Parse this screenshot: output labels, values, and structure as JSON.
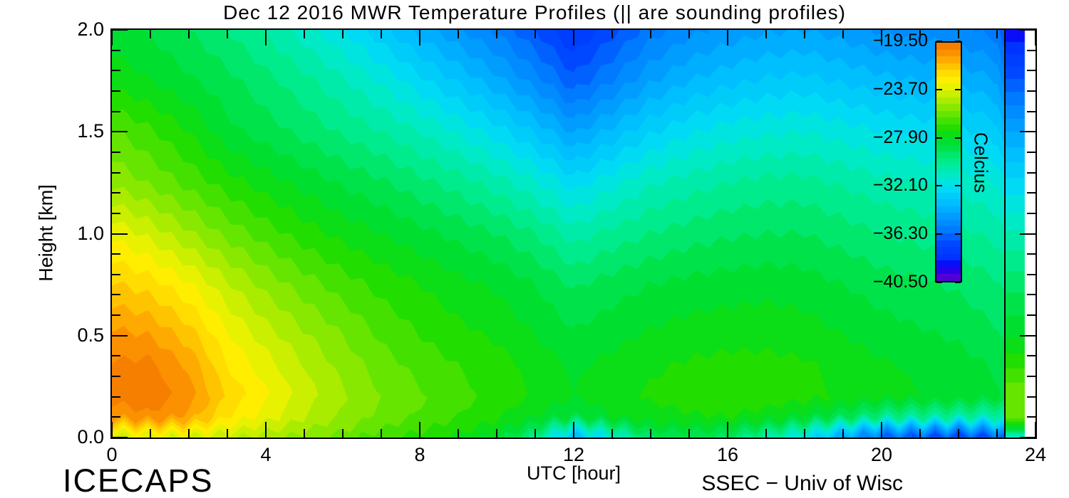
{
  "title": "Dec 12 2016 MWR Temperature Profiles (|| are sounding profiles)",
  "footer": {
    "left": "ICECAPS",
    "right": "SSEC − Univ of Wisc"
  },
  "axes": {
    "x": {
      "label": "UTC [hour]",
      "range": [
        0,
        24
      ],
      "major_ticks": [
        0,
        4,
        8,
        12,
        16,
        20,
        24
      ],
      "tick_labels": [
        "0",
        "4",
        "8",
        "12",
        "16",
        "20",
        "24"
      ],
      "minor_step": 1
    },
    "y": {
      "label": "Height [km]",
      "range": [
        0,
        2
      ],
      "major_ticks": [
        0,
        0.5,
        1.0,
        1.5,
        2.0
      ],
      "tick_labels": [
        "0.0",
        "0.5",
        "1.0",
        "1.5",
        "2.0"
      ],
      "minor_step": 0.1
    }
  },
  "colorbar": {
    "title": "Celcius",
    "tick_labels": [
      "−19.50",
      "−23.70",
      "−27.90",
      "−32.10",
      "−36.30",
      "−40.50"
    ],
    "tick_values": [
      -19.5,
      -23.7,
      -27.9,
      -32.1,
      -36.3,
      -40.5
    ],
    "max": -19.5,
    "min": -40.5
  },
  "chart_data": {
    "type": "heatmap",
    "title": "Dec 12 2016 MWR Temperature Profiles (|| are sounding profiles)",
    "xlabel": "UTC [hour]",
    "ylabel": "Height [km]",
    "value_label": "Celcius",
    "xlim": [
      0,
      24
    ],
    "ylim": [
      0,
      2
    ],
    "level_min": -40.5,
    "level_max": -19.5,
    "level_step": 0.6,
    "x_hours": [
      0,
      1,
      2,
      3,
      4,
      5,
      6,
      7,
      8,
      9,
      10,
      11,
      12,
      13,
      14,
      15,
      16,
      17,
      18,
      19,
      20,
      21,
      22,
      23,
      23.2
    ],
    "heights_km": [
      0,
      0.04,
      0.1,
      0.2,
      0.35,
      0.5,
      0.75,
      1.0,
      1.25,
      1.5,
      1.75,
      2.0
    ],
    "temperature_c": [
      [
        -24.0,
        -23.6,
        -23.8,
        -24.2,
        -24.6,
        -25.2,
        -25.8,
        -26.5,
        -27.0,
        -27.5,
        -28.2,
        -30.0,
        -33.8,
        -31.5,
        -29.2,
        -29.0,
        -29.2,
        -30.5,
        -32.0,
        -34.5,
        -36.5,
        -37.0,
        -37.5,
        -37.0,
        -36.5
      ],
      [
        -22.8,
        -22.3,
        -22.6,
        -23.4,
        -24.1,
        -24.8,
        -25.4,
        -26.1,
        -26.6,
        -27.1,
        -27.7,
        -29.0,
        -31.8,
        -30.0,
        -28.4,
        -28.3,
        -28.5,
        -29.3,
        -30.5,
        -32.5,
        -34.3,
        -34.8,
        -35.2,
        -34.8,
        -34.0
      ],
      [
        -20.6,
        -20.2,
        -20.9,
        -22.5,
        -23.4,
        -24.3,
        -25.0,
        -25.7,
        -26.2,
        -26.7,
        -27.2,
        -27.9,
        -28.6,
        -27.9,
        -27.6,
        -27.4,
        -27.3,
        -27.6,
        -28.2,
        -29.0,
        -30.0,
        -30.3,
        -30.5,
        -30.8,
        -30.5
      ],
      [
        -19.9,
        -19.7,
        -20.4,
        -22.0,
        -23.0,
        -24.0,
        -24.8,
        -25.5,
        -26.0,
        -26.5,
        -26.9,
        -27.4,
        -27.9,
        -27.5,
        -27.2,
        -27.0,
        -26.9,
        -26.9,
        -27.1,
        -27.4,
        -27.7,
        -27.9,
        -28.0,
        -28.4,
        -28.6
      ],
      [
        -20.0,
        -19.9,
        -20.8,
        -22.5,
        -23.4,
        -24.3,
        -25.1,
        -25.8,
        -26.3,
        -26.7,
        -27.0,
        -27.5,
        -28.0,
        -27.7,
        -27.4,
        -27.2,
        -27.1,
        -27.1,
        -27.2,
        -27.5,
        -27.8,
        -28.0,
        -28.2,
        -28.6,
        -28.8
      ],
      [
        -20.5,
        -20.7,
        -21.6,
        -23.0,
        -24.0,
        -24.8,
        -25.5,
        -26.2,
        -26.7,
        -27.1,
        -27.4,
        -27.9,
        -28.4,
        -28.1,
        -27.8,
        -27.6,
        -27.5,
        -27.5,
        -27.6,
        -27.9,
        -28.2,
        -28.4,
        -28.6,
        -29.0,
        -29.2
      ],
      [
        -21.8,
        -22.2,
        -23.0,
        -24.2,
        -25.1,
        -25.8,
        -26.4,
        -26.9,
        -27.3,
        -27.7,
        -28.0,
        -28.5,
        -29.2,
        -28.8,
        -28.5,
        -28.3,
        -28.2,
        -28.1,
        -28.2,
        -28.5,
        -28.8,
        -29.0,
        -29.2,
        -29.6,
        -29.8
      ],
      [
        -23.2,
        -23.9,
        -24.8,
        -25.7,
        -26.4,
        -27.0,
        -27.5,
        -27.9,
        -28.3,
        -28.7,
        -29.1,
        -29.7,
        -30.6,
        -30.1,
        -29.7,
        -29.4,
        -29.2,
        -29.1,
        -29.1,
        -29.4,
        -29.7,
        -29.9,
        -30.1,
        -30.5,
        -30.8
      ],
      [
        -25.0,
        -25.6,
        -26.3,
        -27.0,
        -27.6,
        -28.1,
        -28.6,
        -29.0,
        -29.5,
        -30.0,
        -30.6,
        -31.4,
        -32.4,
        -31.7,
        -31.0,
        -30.6,
        -30.3,
        -30.1,
        -30.1,
        -30.4,
        -30.7,
        -30.9,
        -31.1,
        -31.5,
        -32.0
      ],
      [
        -26.0,
        -26.6,
        -27.3,
        -28.3,
        -28.8,
        -29.3,
        -29.8,
        -30.3,
        -30.9,
        -31.6,
        -32.4,
        -33.4,
        -34.6,
        -33.7,
        -32.8,
        -32.2,
        -31.8,
        -31.6,
        -31.5,
        -31.8,
        -32.1,
        -32.3,
        -32.5,
        -33.0,
        -33.8
      ],
      [
        -27.5,
        -27.9,
        -28.4,
        -28.9,
        -29.5,
        -30.1,
        -30.8,
        -31.6,
        -32.5,
        -33.4,
        -34.3,
        -35.4,
        -36.7,
        -35.7,
        -34.6,
        -33.9,
        -33.5,
        -33.2,
        -33.1,
        -33.4,
        -33.7,
        -33.9,
        -34.0,
        -34.5,
        -35.5
      ],
      [
        -28.2,
        -28.6,
        -29.1,
        -29.7,
        -30.4,
        -31.2,
        -32.1,
        -33.1,
        -34.1,
        -35.0,
        -35.8,
        -36.9,
        -38.2,
        -37.1,
        -36.0,
        -35.3,
        -34.9,
        -34.6,
        -34.5,
        -34.8,
        -35.2,
        -35.4,
        -35.5,
        -36.0,
        -37.0
      ]
    ],
    "sounding_time_utc": 23.2,
    "sounding_profile_c": [
      -31.5,
      -28.5,
      -25.8,
      -25.5,
      -26.8,
      -28.0,
      -29.3,
      -30.8,
      -32.5,
      -34.5,
      -36.8,
      -39.3
    ],
    "data_end_utc": 23.72,
    "colormap_stops": [
      [
        -40.5,
        "#6600cc"
      ],
      [
        -40.0,
        "#4400dd"
      ],
      [
        -39.2,
        "#0e00f5"
      ],
      [
        -38.4,
        "#0033ff"
      ],
      [
        -37.2,
        "#0048ff"
      ],
      [
        -36.0,
        "#007aff"
      ],
      [
        -34.8,
        "#009dff"
      ],
      [
        -33.6,
        "#00bfff"
      ],
      [
        -32.4,
        "#00daf5"
      ],
      [
        -31.8,
        "#00e4e0"
      ],
      [
        -31.2,
        "#00eac6"
      ],
      [
        -30.0,
        "#00ec8c"
      ],
      [
        -28.8,
        "#00e24a"
      ],
      [
        -27.9,
        "#00dd22"
      ],
      [
        -27.0,
        "#22dd00"
      ],
      [
        -26.1,
        "#55e300"
      ],
      [
        -25.2,
        "#88e800"
      ],
      [
        -24.3,
        "#bbee00"
      ],
      [
        -23.4,
        "#e8f200"
      ],
      [
        -22.8,
        "#ffee00"
      ],
      [
        -22.2,
        "#ffdd00"
      ],
      [
        -21.6,
        "#ffc400"
      ],
      [
        -21.0,
        "#ffaa00"
      ],
      [
        -20.4,
        "#fb9100"
      ],
      [
        -19.8,
        "#f67f00"
      ],
      [
        -19.2,
        "#f06e00"
      ]
    ]
  }
}
